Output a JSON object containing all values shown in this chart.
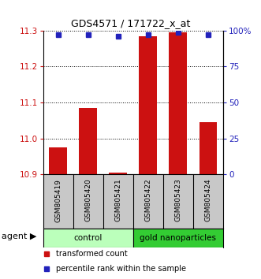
{
  "title": "GDS4571 / 171722_x_at",
  "samples": [
    "GSM805419",
    "GSM805420",
    "GSM805421",
    "GSM805422",
    "GSM805423",
    "GSM805424"
  ],
  "red_values": [
    10.975,
    11.085,
    10.905,
    11.285,
    11.295,
    11.045
  ],
  "blue_values": [
    97,
    97,
    96,
    97,
    99,
    97
  ],
  "ylim_left": [
    10.9,
    11.3
  ],
  "ylim_right": [
    0,
    100
  ],
  "yticks_left": [
    10.9,
    11.0,
    11.1,
    11.2,
    11.3
  ],
  "yticks_right": [
    0,
    25,
    50,
    75,
    100
  ],
  "ytick_labels_right": [
    "0",
    "25",
    "50",
    "75",
    "100%"
  ],
  "bar_color": "#cc1111",
  "dot_color": "#2222bb",
  "groups": [
    {
      "label": "control",
      "start": 0,
      "end": 3,
      "color": "#bbffbb"
    },
    {
      "label": "gold nanoparticles",
      "start": 3,
      "end": 6,
      "color": "#33cc33"
    }
  ],
  "agent_label": "agent",
  "legend_red": "transformed count",
  "legend_blue": "percentile rank within the sample",
  "background_color": "#ffffff",
  "label_bg_color": "#c8c8c8",
  "bar_width": 0.6,
  "title_fontsize": 9,
  "axis_fontsize": 7.5,
  "label_fontsize": 6.5,
  "group_fontsize": 7.5,
  "legend_fontsize": 7
}
